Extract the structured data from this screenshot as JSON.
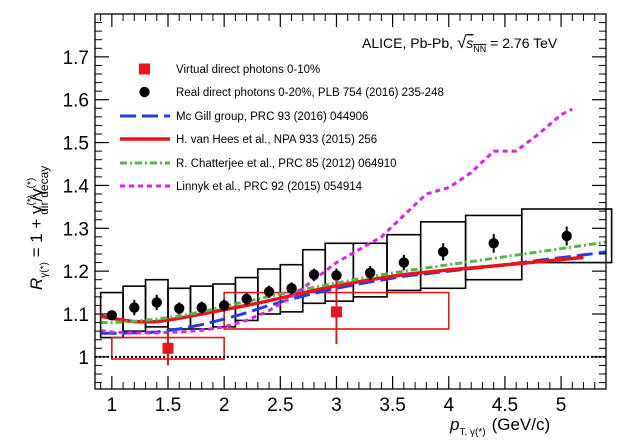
{
  "chart_data": {
    "type": "scatter",
    "title_prefix": "ALICE, Pb-Pb, ",
    "title_sqrt": "√",
    "title_s": "s",
    "title_nn": "NN",
    "title_suffix": " = 2.76 TeV",
    "xlabel": {
      "p": "p",
      "sub": "T, γ(*)",
      "units": "(GeV/c)"
    },
    "ylabel": {
      "main": "R",
      "sub": "γ(*)",
      "rhs": " = 1 + γ",
      "sup1": "(*)",
      "sub1": "dir",
      "mid": "/γ",
      "sup2": "(*)",
      "sub2": "decay"
    },
    "xlim": [
      0.85,
      5.4
    ],
    "ylim": [
      0.925,
      1.8
    ],
    "x_ticks": [
      "1",
      "1.5",
      "2",
      "2.5",
      "3",
      "3.5",
      "4",
      "4.5",
      "5"
    ],
    "x_tick_values": [
      1,
      1.5,
      2,
      2.5,
      3,
      3.5,
      4,
      4.5,
      5
    ],
    "y_ticks": [
      "1",
      "1.1",
      "1.2",
      "1.3",
      "1.4",
      "1.5",
      "1.6",
      "1.7"
    ],
    "y_tick_values": [
      1,
      1.1,
      1.2,
      1.3,
      1.4,
      1.5,
      1.6,
      1.7
    ],
    "reference_line": 1.0,
    "series": [
      {
        "name": "Virtual direct photons 0-10%",
        "color": "#e8141c",
        "marker": "square",
        "points": [
          {
            "x": 1.5,
            "y": 1.02,
            "yerr": 0.04,
            "sys_xlo": 1.0,
            "sys_xhi": 2.0,
            "sys_ylo": 0.995,
            "sys_yhi": 1.045
          },
          {
            "x": 3.0,
            "y": 1.105,
            "yerr": 0.075,
            "sys_xlo": 2.0,
            "sys_xhi": 4.0,
            "sys_ylo": 1.065,
            "sys_yhi": 1.15
          }
        ]
      },
      {
        "name": "Real direct photons 0-20%, PLB 754 (2016) 235-248",
        "color": "#000000",
        "marker": "circle",
        "points": [
          {
            "x": 1.0,
            "y": 1.097,
            "yerr": 0.01,
            "xlo": 0.9,
            "xhi": 1.1,
            "sys_lo": 1.045,
            "sys_hi": 1.15
          },
          {
            "x": 1.2,
            "y": 1.115,
            "yerr": 0.018,
            "xlo": 1.1,
            "xhi": 1.3,
            "sys_lo": 1.06,
            "sys_hi": 1.165
          },
          {
            "x": 1.4,
            "y": 1.127,
            "yerr": 0.018,
            "xlo": 1.3,
            "xhi": 1.5,
            "sys_lo": 1.07,
            "sys_hi": 1.18
          },
          {
            "x": 1.6,
            "y": 1.113,
            "yerr": 0.014,
            "xlo": 1.5,
            "xhi": 1.7,
            "sys_lo": 1.065,
            "sys_hi": 1.16
          },
          {
            "x": 1.8,
            "y": 1.115,
            "yerr": 0.014,
            "xlo": 1.7,
            "xhi": 1.9,
            "sys_lo": 1.065,
            "sys_hi": 1.165
          },
          {
            "x": 2.0,
            "y": 1.12,
            "yerr": 0.014,
            "xlo": 1.9,
            "xhi": 2.1,
            "sys_lo": 1.07,
            "sys_hi": 1.17
          },
          {
            "x": 2.2,
            "y": 1.135,
            "yerr": 0.014,
            "xlo": 2.1,
            "xhi": 2.3,
            "sys_lo": 1.085,
            "sys_hi": 1.185
          },
          {
            "x": 2.4,
            "y": 1.152,
            "yerr": 0.014,
            "xlo": 2.3,
            "xhi": 2.5,
            "sys_lo": 1.1,
            "sys_hi": 1.205
          },
          {
            "x": 2.6,
            "y": 1.16,
            "yerr": 0.014,
            "xlo": 2.5,
            "xhi": 2.7,
            "sys_lo": 1.105,
            "sys_hi": 1.215
          },
          {
            "x": 2.8,
            "y": 1.192,
            "yerr": 0.014,
            "xlo": 2.7,
            "xhi": 2.9,
            "sys_lo": 1.125,
            "sys_hi": 1.25
          },
          {
            "x": 3.0,
            "y": 1.19,
            "yerr": 0.016,
            "xlo": 2.9,
            "xhi": 3.15,
            "sys_lo": 1.13,
            "sys_hi": 1.265
          },
          {
            "x": 3.3,
            "y": 1.196,
            "yerr": 0.016,
            "xlo": 3.15,
            "xhi": 3.45,
            "sys_lo": 1.14,
            "sys_hi": 1.265
          },
          {
            "x": 3.6,
            "y": 1.22,
            "yerr": 0.018,
            "xlo": 3.45,
            "xhi": 3.75,
            "sys_lo": 1.155,
            "sys_hi": 1.285
          },
          {
            "x": 3.95,
            "y": 1.245,
            "yerr": 0.02,
            "xlo": 3.75,
            "xhi": 4.15,
            "sys_lo": 1.16,
            "sys_hi": 1.315
          },
          {
            "x": 4.4,
            "y": 1.265,
            "yerr": 0.022,
            "xlo": 4.15,
            "xhi": 4.65,
            "sys_lo": 1.18,
            "sys_hi": 1.33
          },
          {
            "x": 5.05,
            "y": 1.282,
            "yerr": 0.022,
            "xlo": 4.65,
            "xhi": 5.45,
            "sys_lo": 1.22,
            "sys_hi": 1.345
          }
        ]
      },
      {
        "name": "Mc Gill group, PRC 93 (2016) 044906",
        "color": "#1f3fe0",
        "style": "dashed",
        "x": [
          0.9,
          1.0,
          1.2,
          1.4,
          1.6,
          1.8,
          2.0,
          2.2,
          2.4,
          2.6,
          2.8,
          3.0,
          3.3,
          3.6,
          4.0,
          4.4,
          4.8,
          5.2,
          5.4
        ],
        "y": [
          1.055,
          1.055,
          1.056,
          1.058,
          1.065,
          1.075,
          1.088,
          1.103,
          1.12,
          1.135,
          1.148,
          1.16,
          1.175,
          1.188,
          1.2,
          1.212,
          1.225,
          1.238,
          1.245
        ]
      },
      {
        "name": "H. van Hees et al., NPA 933 (2015) 256",
        "color": "#e8141c",
        "style": "solid",
        "x": [
          0.9,
          1.0,
          1.2,
          1.4,
          1.6,
          1.8,
          2.0,
          2.2,
          2.4,
          2.6,
          2.8,
          3.0,
          3.3,
          3.6,
          4.0,
          4.4,
          4.8,
          5.2
        ],
        "y": [
          1.095,
          1.09,
          1.082,
          1.082,
          1.09,
          1.1,
          1.11,
          1.12,
          1.131,
          1.143,
          1.155,
          1.166,
          1.18,
          1.192,
          1.203,
          1.212,
          1.222,
          1.232
        ]
      },
      {
        "name": "R. Chatterjee et al., PRC 85 (2012) 064910",
        "color": "#52b848",
        "style": "dashdot",
        "x": [
          0.9,
          1.0,
          1.2,
          1.4,
          1.6,
          1.8,
          2.0,
          2.3,
          2.6,
          3.0,
          3.3,
          3.6,
          4.0,
          4.4,
          4.8,
          5.2,
          5.4
        ],
        "y": [
          1.08,
          1.08,
          1.083,
          1.088,
          1.095,
          1.105,
          1.118,
          1.135,
          1.152,
          1.172,
          1.187,
          1.2,
          1.215,
          1.23,
          1.245,
          1.26,
          1.268
        ]
      },
      {
        "name": "Linnyk et al., PRC 92 (2015) 054914",
        "color": "#e020e8",
        "style": "dotted",
        "x": [
          0.9,
          1.0,
          1.2,
          1.4,
          1.6,
          1.8,
          2.0,
          2.2,
          2.4,
          2.6,
          2.8,
          3.0,
          3.2,
          3.4,
          3.6,
          3.8,
          4.0,
          4.2,
          4.4,
          4.6,
          4.8,
          5.0,
          5.1
        ],
        "y": [
          1.062,
          1.058,
          1.056,
          1.056,
          1.058,
          1.062,
          1.07,
          1.085,
          1.108,
          1.14,
          1.18,
          1.22,
          1.25,
          1.28,
          1.33,
          1.38,
          1.395,
          1.43,
          1.48,
          1.48,
          1.52,
          1.565,
          1.578
        ]
      }
    ],
    "legend_position": "top-left"
  }
}
